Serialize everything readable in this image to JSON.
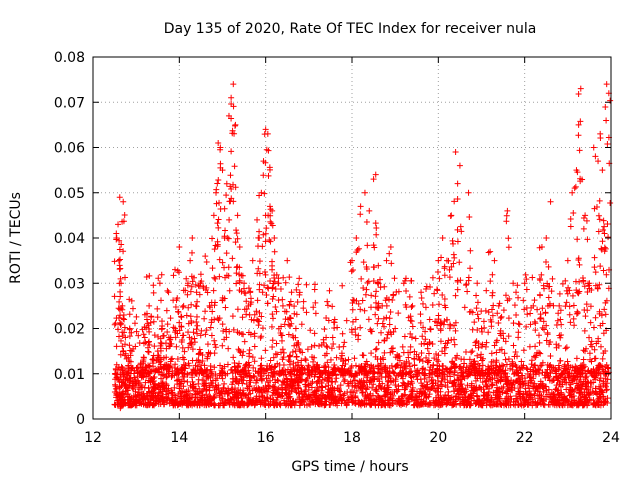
{
  "chart_data": {
    "type": "scatter",
    "title": "Day 135 of 2020, Rate Of TEC Index for receiver nula",
    "xlabel": "GPS time / hours",
    "ylabel": "ROTI / TECUs",
    "xlim": [
      12,
      24
    ],
    "ylim": [
      0,
      0.08
    ],
    "x_ticks": [
      "12",
      "14",
      "16",
      "18",
      "20",
      "22",
      "24"
    ],
    "y_ticks": [
      "0",
      "0.01",
      "0.02",
      "0.03",
      "0.04",
      "0.05",
      "0.06",
      "0.07",
      "0.08"
    ],
    "grid": true,
    "marker": "+",
    "color": "#ff0000",
    "series": [
      {
        "name": "ROTI",
        "x": [
          12.55,
          12.62,
          12.7,
          12.6,
          12.68,
          12.58,
          12.75,
          12.65,
          12.55,
          12.72,
          12.63,
          12.66,
          12.8,
          12.9,
          12.85,
          13.0,
          13.1,
          13.2,
          13.25,
          13.3,
          13.4,
          13.5,
          13.55,
          13.6,
          13.7,
          13.75,
          13.8,
          13.9,
          14.0,
          14.1,
          14.2,
          14.25,
          14.3,
          14.4,
          14.5,
          14.6,
          14.7,
          14.8,
          14.85,
          14.9,
          14.95,
          15.0,
          15.05,
          15.1,
          15.15,
          15.2,
          15.25,
          15.3,
          15.35,
          15.4,
          15.5,
          15.6,
          15.7,
          15.8,
          15.85,
          15.9,
          15.95,
          16.0,
          16.05,
          16.1,
          16.15,
          16.2,
          16.3,
          16.4,
          16.5,
          16.6,
          16.7,
          16.8,
          17.0,
          17.2,
          17.4,
          17.6,
          17.8,
          18.0,
          18.1,
          18.2,
          18.3,
          18.4,
          18.5,
          18.55,
          18.6,
          18.7,
          18.8,
          18.9,
          19.0,
          19.2,
          19.4,
          19.6,
          19.8,
          20.0,
          20.1,
          20.2,
          20.3,
          20.4,
          20.5,
          20.7,
          20.9,
          21.0,
          21.2,
          21.3,
          21.4,
          21.6,
          21.8,
          22.0,
          22.2,
          22.4,
          22.5,
          22.6,
          22.8,
          23.0,
          23.1,
          23.2,
          23.25,
          23.3,
          23.4,
          23.5,
          23.6,
          23.7,
          23.75,
          23.8,
          23.85,
          23.9,
          23.95
        ],
        "y": [
          0.04,
          0.049,
          0.048,
          0.035,
          0.025,
          0.043,
          0.018,
          0.03,
          0.012,
          0.022,
          0.007,
          0.005,
          0.01,
          0.015,
          0.02,
          0.008,
          0.012,
          0.018,
          0.022,
          0.025,
          0.009,
          0.015,
          0.03,
          0.02,
          0.012,
          0.028,
          0.018,
          0.033,
          0.038,
          0.025,
          0.03,
          0.035,
          0.04,
          0.028,
          0.032,
          0.036,
          0.025,
          0.045,
          0.05,
          0.061,
          0.06,
          0.055,
          0.04,
          0.052,
          0.067,
          0.071,
          0.074,
          0.065,
          0.045,
          0.038,
          0.03,
          0.025,
          0.035,
          0.044,
          0.04,
          0.05,
          0.057,
          0.064,
          0.063,
          0.047,
          0.046,
          0.04,
          0.03,
          0.025,
          0.035,
          0.028,
          0.02,
          0.015,
          0.01,
          0.012,
          0.018,
          0.022,
          0.016,
          0.035,
          0.04,
          0.047,
          0.05,
          0.046,
          0.053,
          0.054,
          0.03,
          0.025,
          0.035,
          0.038,
          0.02,
          0.03,
          0.025,
          0.028,
          0.022,
          0.035,
          0.04,
          0.035,
          0.045,
          0.059,
          0.056,
          0.05,
          0.03,
          0.02,
          0.037,
          0.035,
          0.025,
          0.046,
          0.028,
          0.03,
          0.025,
          0.038,
          0.04,
          0.048,
          0.025,
          0.035,
          0.05,
          0.055,
          0.065,
          0.073,
          0.045,
          0.03,
          0.06,
          0.057,
          0.063,
          0.055,
          0.041,
          0.074,
          0.072
        ],
        "background_band": {
          "x_range": [
            12.5,
            23.95
          ],
          "y_range": [
            0.003,
            0.012
          ],
          "count": 2600
        }
      }
    ]
  }
}
